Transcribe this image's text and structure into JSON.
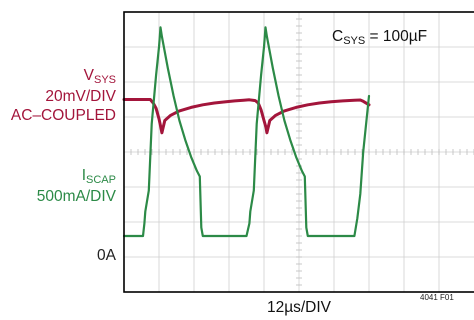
{
  "chart_data": {
    "type": "line",
    "annotation": {
      "main": "C",
      "sub": "SYS",
      "rest": " = 100µF"
    },
    "xlabel": "12µs/DIV",
    "figure_id": "4041 F01",
    "grid": true,
    "divisions": {
      "x": 10,
      "y": 8
    },
    "traces": [
      {
        "label_main": "V",
        "label_sub": "SYS",
        "scale": "20mV/DIV",
        "coupling": "AC–COUPLED",
        "color": "#a3153b",
        "baseline_div": 5.5,
        "units_per_div": 20,
        "unit": "mV",
        "points": [
          [
            0,
            0
          ],
          [
            5,
            0
          ],
          [
            9,
            0
          ],
          [
            10,
            -2
          ],
          [
            11,
            -5
          ],
          [
            12,
            -11
          ],
          [
            12.5,
            -15
          ],
          [
            13,
            -19
          ],
          [
            14,
            -12
          ],
          [
            16,
            -9
          ],
          [
            19,
            -6.5
          ],
          [
            23,
            -4.5
          ],
          [
            27,
            -3
          ],
          [
            31,
            -2
          ],
          [
            35,
            -1.3
          ],
          [
            38,
            -0.8
          ],
          [
            41,
            -0.4
          ],
          [
            43,
            -0.2
          ],
          [
            45,
            -0.6
          ],
          [
            46,
            -2
          ],
          [
            47,
            -6
          ],
          [
            48,
            -12
          ],
          [
            48.7,
            -16
          ],
          [
            49,
            -19
          ],
          [
            50,
            -12
          ],
          [
            52,
            -9
          ],
          [
            55,
            -6.5
          ],
          [
            59,
            -4.5
          ],
          [
            63,
            -3
          ],
          [
            67,
            -2
          ],
          [
            71,
            -1.3
          ],
          [
            75,
            -0.8
          ],
          [
            79,
            -0.4
          ],
          [
            81,
            -0.3
          ],
          [
            82,
            -1
          ],
          [
            84,
            -3
          ]
        ]
      },
      {
        "label_main": "I",
        "label_sub": "SCAP",
        "scale": "500mA/DIV",
        "zero_label": "0A",
        "color": "#2c8a47",
        "baseline_div": 1.6,
        "units_per_div": 500,
        "unit": "mA",
        "points": [
          [
            0,
            0
          ],
          [
            5,
            0
          ],
          [
            6.5,
            0
          ],
          [
            7,
            180
          ],
          [
            7.3,
            350
          ],
          [
            8.5,
            650
          ],
          [
            9.5,
            1600
          ],
          [
            11,
            2300
          ],
          [
            12,
            2700
          ],
          [
            12.5,
            2980
          ],
          [
            13,
            2850
          ],
          [
            15,
            2400
          ],
          [
            17,
            2000
          ],
          [
            19,
            1650
          ],
          [
            21,
            1370
          ],
          [
            23,
            1130
          ],
          [
            25,
            930
          ],
          [
            26,
            850
          ],
          [
            26.5,
            120
          ],
          [
            27,
            0
          ],
          [
            30,
            0
          ],
          [
            35,
            0
          ],
          [
            42,
            0
          ],
          [
            43,
            180
          ],
          [
            43.3,
            350
          ],
          [
            44.5,
            650
          ],
          [
            45.5,
            1600
          ],
          [
            47,
            2300
          ],
          [
            48,
            2700
          ],
          [
            48.5,
            2980
          ],
          [
            49,
            2850
          ],
          [
            51,
            2400
          ],
          [
            53,
            2000
          ],
          [
            55,
            1650
          ],
          [
            57,
            1370
          ],
          [
            59,
            1130
          ],
          [
            61,
            930
          ],
          [
            62,
            850
          ],
          [
            62.5,
            120
          ],
          [
            63,
            0
          ],
          [
            70,
            0
          ],
          [
            76,
            0
          ],
          [
            79,
            0
          ],
          [
            80,
            250
          ],
          [
            81,
            600
          ],
          [
            82,
            1200
          ],
          [
            84,
            2000
          ]
        ]
      }
    ]
  }
}
